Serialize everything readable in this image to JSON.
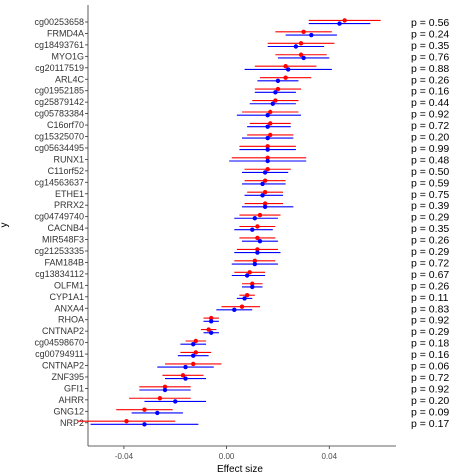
{
  "chart_data": {
    "type": "forest",
    "xlabel": "Effect size",
    "ylabel": "y",
    "xlim": [
      -0.054,
      0.066
    ],
    "x_ticks": [
      -0.04,
      0.0,
      0.04
    ],
    "x_tick_labels": [
      "-0.04",
      "0.00",
      "0.04"
    ],
    "grid": false,
    "colors": {
      "red": "#ff0000",
      "blue": "#0000ff"
    },
    "rows": [
      {
        "label": "cg00253658",
        "p": "p = 0.56",
        "red": {
          "est": 0.046,
          "lo": 0.032,
          "hi": 0.06
        },
        "blue": {
          "est": 0.044,
          "lo": 0.032,
          "hi": 0.056
        }
      },
      {
        "label": "FRMD4A",
        "p": "p = 0.24",
        "red": {
          "est": 0.03,
          "lo": 0.019,
          "hi": 0.041
        },
        "blue": {
          "est": 0.033,
          "lo": 0.023,
          "hi": 0.043
        }
      },
      {
        "label": "cg18493761",
        "p": "p = 0.35",
        "red": {
          "est": 0.029,
          "lo": 0.016,
          "hi": 0.042
        },
        "blue": {
          "est": 0.027,
          "lo": 0.016,
          "hi": 0.038
        }
      },
      {
        "label": "MYO1G",
        "p": "p = 0.76",
        "red": {
          "est": 0.029,
          "lo": 0.019,
          "hi": 0.039
        },
        "blue": {
          "est": 0.03,
          "lo": 0.02,
          "hi": 0.04
        }
      },
      {
        "label": "cg20117519",
        "p": "p = 0.88",
        "red": {
          "est": 0.023,
          "lo": 0.011,
          "hi": 0.035
        },
        "blue": {
          "est": 0.024,
          "lo": 0.007,
          "hi": 0.041
        }
      },
      {
        "label": "ARL4C",
        "p": "p = 0.26",
        "red": {
          "est": 0.023,
          "lo": 0.013,
          "hi": 0.033
        },
        "blue": {
          "est": 0.02,
          "lo": 0.012,
          "hi": 0.028
        }
      },
      {
        "label": "cg01952185",
        "p": "p = 0.16",
        "red": {
          "est": 0.02,
          "lo": 0.011,
          "hi": 0.029
        },
        "blue": {
          "est": 0.019,
          "lo": 0.011,
          "hi": 0.027
        }
      },
      {
        "label": "cg25879142",
        "p": "p = 0.44",
        "red": {
          "est": 0.019,
          "lo": 0.01,
          "hi": 0.028
        },
        "blue": {
          "est": 0.018,
          "lo": 0.009,
          "hi": 0.027
        }
      },
      {
        "label": "cg05783384",
        "p": "p = 0.92",
        "red": {
          "est": 0.017,
          "lo": 0.006,
          "hi": 0.028
        },
        "blue": {
          "est": 0.016,
          "lo": 0.004,
          "hi": 0.029
        }
      },
      {
        "label": "C16orf70",
        "p": "p = 0.72",
        "red": {
          "est": 0.017,
          "lo": 0.009,
          "hi": 0.025
        },
        "blue": {
          "est": 0.016,
          "lo": 0.008,
          "hi": 0.025
        }
      },
      {
        "label": "cg15325070",
        "p": "p = 0.20",
        "red": {
          "est": 0.017,
          "lo": 0.008,
          "hi": 0.026
        },
        "blue": {
          "est": 0.016,
          "lo": 0.006,
          "hi": 0.026
        }
      },
      {
        "label": "cg05634495",
        "p": "p = 0.99",
        "red": {
          "est": 0.016,
          "lo": 0.005,
          "hi": 0.027
        },
        "blue": {
          "est": 0.016,
          "lo": 0.005,
          "hi": 0.027
        }
      },
      {
        "label": "RUNX1",
        "p": "p = 0.48",
        "red": {
          "est": 0.016,
          "lo": 0.002,
          "hi": 0.031
        },
        "blue": {
          "est": 0.016,
          "lo": 0.001,
          "hi": 0.031
        }
      },
      {
        "label": "C11orf52",
        "p": "p = 0.50",
        "red": {
          "est": 0.016,
          "lo": 0.007,
          "hi": 0.025
        },
        "blue": {
          "est": 0.015,
          "lo": 0.006,
          "hi": 0.024
        }
      },
      {
        "label": "cg14563637",
        "p": "p = 0.59",
        "red": {
          "est": 0.015,
          "lo": 0.007,
          "hi": 0.023
        },
        "blue": {
          "est": 0.014,
          "lo": 0.006,
          "hi": 0.023
        }
      },
      {
        "label": "ETHE1",
        "p": "p = 0.75",
        "red": {
          "est": 0.015,
          "lo": 0.008,
          "hi": 0.022
        },
        "blue": {
          "est": 0.014,
          "lo": 0.007,
          "hi": 0.022
        }
      },
      {
        "label": "PRRX2",
        "p": "p = 0.39",
        "red": {
          "est": 0.015,
          "lo": 0.007,
          "hi": 0.022
        },
        "blue": {
          "est": 0.015,
          "lo": 0.006,
          "hi": 0.026
        }
      },
      {
        "label": "cg04749740",
        "p": "p = 0.29",
        "red": {
          "est": 0.013,
          "lo": 0.005,
          "hi": 0.021
        },
        "blue": {
          "est": 0.011,
          "lo": 0.003,
          "hi": 0.02
        }
      },
      {
        "label": "CACNB4",
        "p": "p = 0.35",
        "red": {
          "est": 0.012,
          "lo": 0.005,
          "hi": 0.019
        },
        "blue": {
          "est": 0.01,
          "lo": 0.003,
          "hi": 0.018
        }
      },
      {
        "label": "MIR548F3",
        "p": "p = 0.26",
        "red": {
          "est": 0.012,
          "lo": 0.005,
          "hi": 0.019
        },
        "blue": {
          "est": 0.013,
          "lo": 0.006,
          "hi": 0.02
        }
      },
      {
        "label": "cg21253335",
        "p": "p = 0.29",
        "red": {
          "est": 0.012,
          "lo": 0.004,
          "hi": 0.02
        },
        "blue": {
          "est": 0.012,
          "lo": 0.003,
          "hi": 0.021
        }
      },
      {
        "label": "FAM184B",
        "p": "p = 0.72",
        "red": {
          "est": 0.011,
          "lo": 0.003,
          "hi": 0.019
        },
        "blue": {
          "est": 0.011,
          "lo": 0.002,
          "hi": 0.02
        }
      },
      {
        "label": "cg13834112",
        "p": "p = 0.67",
        "red": {
          "est": 0.009,
          "lo": 0.003,
          "hi": 0.015
        },
        "blue": {
          "est": 0.008,
          "lo": 0.002,
          "hi": 0.015
        }
      },
      {
        "label": "OLFM1",
        "p": "p = 0.26",
        "red": {
          "est": 0.01,
          "lo": 0.006,
          "hi": 0.014
        },
        "blue": {
          "est": 0.01,
          "lo": 0.006,
          "hi": 0.014
        }
      },
      {
        "label": "CYP1A1",
        "p": "p = 0.11",
        "red": {
          "est": 0.008,
          "lo": 0.005,
          "hi": 0.011
        },
        "blue": {
          "est": 0.007,
          "lo": 0.004,
          "hi": 0.01
        }
      },
      {
        "label": "ANXA4",
        "p": "p = 0.83",
        "red": {
          "est": 0.006,
          "lo": -0.002,
          "hi": 0.013
        },
        "blue": {
          "est": 0.003,
          "lo": -0.004,
          "hi": 0.01
        }
      },
      {
        "label": "RHOA",
        "p": "p = 0.92",
        "red": {
          "est": -0.006,
          "lo": -0.009,
          "hi": -0.003
        },
        "blue": {
          "est": -0.006,
          "lo": -0.009,
          "hi": -0.003
        }
      },
      {
        "label": "CNTNAP2",
        "p": "p = 0.29",
        "red": {
          "est": -0.007,
          "lo": -0.01,
          "hi": -0.004
        },
        "blue": {
          "est": -0.006,
          "lo": -0.009,
          "hi": -0.003
        }
      },
      {
        "label": "cg04598670",
        "p": "p = 0.18",
        "red": {
          "est": -0.012,
          "lo": -0.016,
          "hi": -0.008
        },
        "blue": {
          "est": -0.013,
          "lo": -0.018,
          "hi": -0.008
        }
      },
      {
        "label": "cg00794911",
        "p": "p = 0.16",
        "red": {
          "est": -0.012,
          "lo": -0.018,
          "hi": -0.006
        },
        "blue": {
          "est": -0.013,
          "lo": -0.019,
          "hi": -0.007
        }
      },
      {
        "label": "CNTNAP2",
        "p": "p = 0.06",
        "red": {
          "est": -0.013,
          "lo": -0.024,
          "hi": -0.002
        },
        "blue": {
          "est": -0.016,
          "lo": -0.027,
          "hi": -0.005
        }
      },
      {
        "label": "ZNF395",
        "p": "p = 0.72",
        "red": {
          "est": -0.017,
          "lo": -0.025,
          "hi": -0.009
        },
        "blue": {
          "est": -0.016,
          "lo": -0.024,
          "hi": -0.008
        }
      },
      {
        "label": "GFI1",
        "p": "p = 0.92",
        "red": {
          "est": -0.024,
          "lo": -0.034,
          "hi": -0.014
        },
        "blue": {
          "est": -0.024,
          "lo": -0.034,
          "hi": -0.014
        }
      },
      {
        "label": "AHRR",
        "p": "p = 0.20",
        "red": {
          "est": -0.026,
          "lo": -0.038,
          "hi": -0.014
        },
        "blue": {
          "est": -0.02,
          "lo": -0.032,
          "hi": -0.008
        }
      },
      {
        "label": "GNG12",
        "p": "p = 0.09",
        "red": {
          "est": -0.032,
          "lo": -0.043,
          "hi": -0.021
        },
        "blue": {
          "est": -0.027,
          "lo": -0.037,
          "hi": -0.017
        }
      },
      {
        "label": "NRP2",
        "p": "p = 0.17",
        "red": {
          "est": -0.039,
          "lo": -0.058,
          "hi": -0.02
        },
        "blue": {
          "est": -0.032,
          "lo": -0.053,
          "hi": -0.011
        }
      }
    ]
  }
}
